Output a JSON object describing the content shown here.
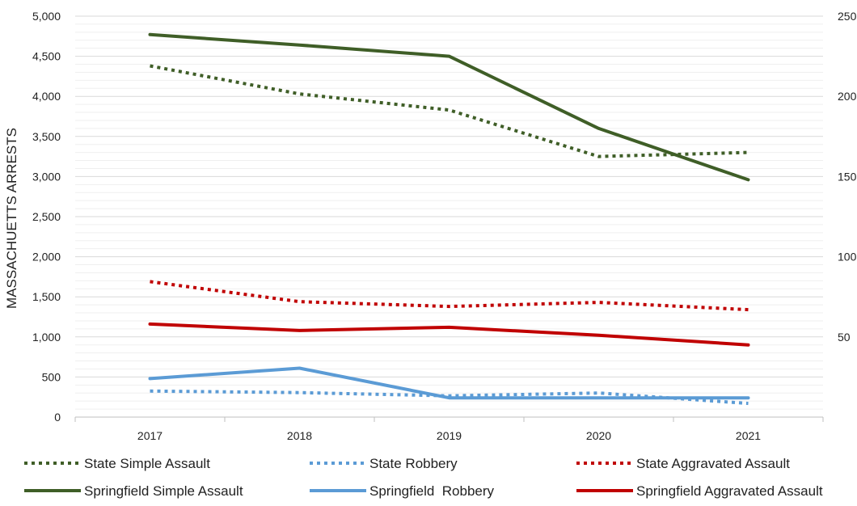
{
  "chart_data": {
    "type": "line",
    "title": "",
    "ylabel": "MASSACHUETTS ARRESTS",
    "y2label": "",
    "categories": [
      "2017",
      "2018",
      "2019",
      "2020",
      "2021"
    ],
    "ylim": [
      0,
      5000
    ],
    "yticks": [
      "0",
      "500",
      "1,000",
      "1,500",
      "2,000",
      "2,500",
      "3,000",
      "3,500",
      "4,000",
      "4,500",
      "5,000"
    ],
    "y2lim": [
      0,
      250
    ],
    "y2ticks": [
      "50",
      "100",
      "150",
      "200",
      "250"
    ],
    "grid": true,
    "legend_position": "bottom",
    "series": [
      {
        "name": "State Simple Assault",
        "axis": "left",
        "style": "dotted",
        "color": "#3f5e27",
        "values": [
          4380,
          4030,
          3830,
          3250,
          3300
        ]
      },
      {
        "name": "State Robbery",
        "axis": "left",
        "style": "dotted",
        "color": "#5b9bd5",
        "values": [
          325,
          305,
          265,
          300,
          170
        ]
      },
      {
        "name": "State Aggravated Assault",
        "axis": "left",
        "style": "dotted",
        "color": "#c00000",
        "values": [
          1690,
          1440,
          1380,
          1430,
          1340
        ]
      },
      {
        "name": "Springfield Simple Assault",
        "axis": "right",
        "style": "solid",
        "color": "#3f5e27",
        "values": [
          238.5,
          232,
          225,
          180,
          148
        ]
      },
      {
        "name": "Springfield  Robbery",
        "axis": "right",
        "style": "solid",
        "color": "#5b9bd5",
        "values": [
          24,
          30.5,
          12,
          12,
          12
        ]
      },
      {
        "name": "Springfield Aggravated Assault",
        "axis": "right",
        "style": "solid",
        "color": "#c00000",
        "values": [
          58,
          54,
          56,
          51,
          45
        ]
      }
    ]
  }
}
